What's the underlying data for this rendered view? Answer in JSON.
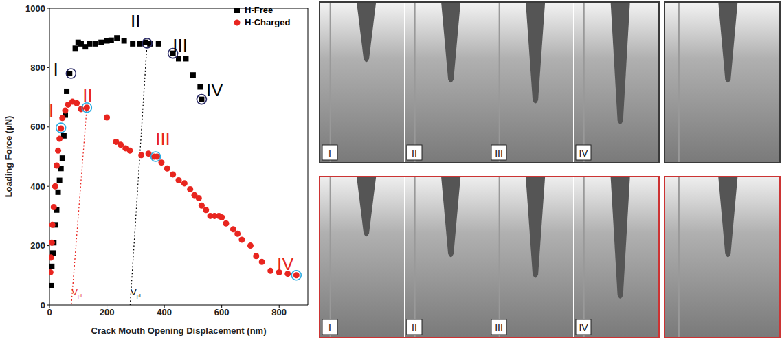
{
  "chart_data": {
    "type": "scatter",
    "x_label": "Crack Mouth Opening Displacement (nm)",
    "y_label": "Loading Force (µN)",
    "xlim": [
      0,
      900
    ],
    "xticks": [
      0,
      200,
      400,
      600,
      800
    ],
    "ylim": [
      0,
      1000
    ],
    "yticks": [
      0,
      200,
      400,
      600,
      800,
      1000
    ],
    "legend": "upper right",
    "series": [
      {
        "name": "H-Free",
        "color": "#000000",
        "marker": "square",
        "x": [
          5,
          8,
          12,
          15,
          20,
          25,
          30,
          35,
          40,
          45,
          50,
          55,
          60,
          70,
          90,
          100,
          110,
          125,
          140,
          160,
          180,
          200,
          215,
          235,
          260,
          290,
          315,
          335,
          350,
          380,
          430,
          450,
          475,
          500,
          525,
          530
        ],
        "values": [
          65,
          130,
          175,
          210,
          270,
          320,
          380,
          420,
          460,
          495,
          570,
          640,
          720,
          780,
          865,
          885,
          880,
          870,
          880,
          880,
          885,
          890,
          892,
          900,
          890,
          880,
          880,
          885,
          880,
          880,
          848,
          830,
          830,
          775,
          735,
          693
        ]
      },
      {
        "name": "H-Charged",
        "color": "#e8251f",
        "marker": "circle",
        "x": [
          3,
          5,
          8,
          10,
          15,
          20,
          25,
          30,
          35,
          40,
          45,
          55,
          65,
          80,
          95,
          110,
          130,
          200,
          232,
          248,
          265,
          280,
          320,
          345,
          365,
          375,
          390,
          410,
          430,
          450,
          470,
          490,
          505,
          520,
          530,
          545,
          560,
          575,
          590,
          600,
          615,
          640,
          655,
          670,
          700,
          720,
          740,
          770,
          800,
          830,
          860
        ],
        "values": [
          110,
          160,
          210,
          270,
          330,
          400,
          470,
          520,
          560,
          595,
          630,
          655,
          675,
          685,
          680,
          660,
          665,
          632,
          550,
          540,
          528,
          520,
          505,
          510,
          500,
          500,
          480,
          460,
          440,
          420,
          410,
          390,
          370,
          360,
          335,
          320,
          300,
          300,
          300,
          295,
          275,
          255,
          240,
          220,
          200,
          165,
          145,
          115,
          110,
          105,
          100
        ]
      }
    ],
    "stages": [
      {
        "series": "H-Free",
        "color": "#2a2a66",
        "labels": [
          "I",
          "II",
          "III",
          "IV"
        ],
        "points": [
          [
            75,
            780
          ],
          [
            340,
            882
          ],
          [
            430,
            848
          ],
          [
            530,
            693
          ]
        ],
        "label_at": [
          [
            22,
            790
          ],
          [
            300,
            950
          ],
          [
            455,
            870
          ],
          [
            575,
            720
          ]
        ]
      },
      {
        "series": "H-Charged",
        "color": "#29abe2",
        "labels": [
          "I",
          "II",
          "III",
          "IV"
        ],
        "points": [
          [
            40,
            597
          ],
          [
            130,
            665
          ],
          [
            370,
            500
          ],
          [
            860,
            100
          ]
        ],
        "label_at": [
          [
            6,
            650
          ],
          [
            133,
            700
          ],
          [
            395,
            555
          ],
          [
            822,
            135
          ]
        ]
      }
    ],
    "annotations": [
      {
        "text": "V",
        "sub": "pl",
        "color": "#e8251f",
        "x": 76,
        "from": [
          130,
          665
        ],
        "label_at": [
          95,
          40
        ]
      },
      {
        "text": "V",
        "sub": "pl",
        "color": "#000000",
        "x": 281,
        "from": [
          340,
          882
        ],
        "label_at": [
          300,
          40
        ]
      }
    ]
  },
  "image_panels": [
    {
      "series": "H-Free",
      "color": "#3a3a3a",
      "labels": [
        "I",
        "II",
        "III",
        "IV"
      ]
    },
    {
      "series": "H-Charged",
      "color": "#cc3333",
      "labels": [
        "I",
        "II",
        "III",
        "IV"
      ]
    }
  ]
}
